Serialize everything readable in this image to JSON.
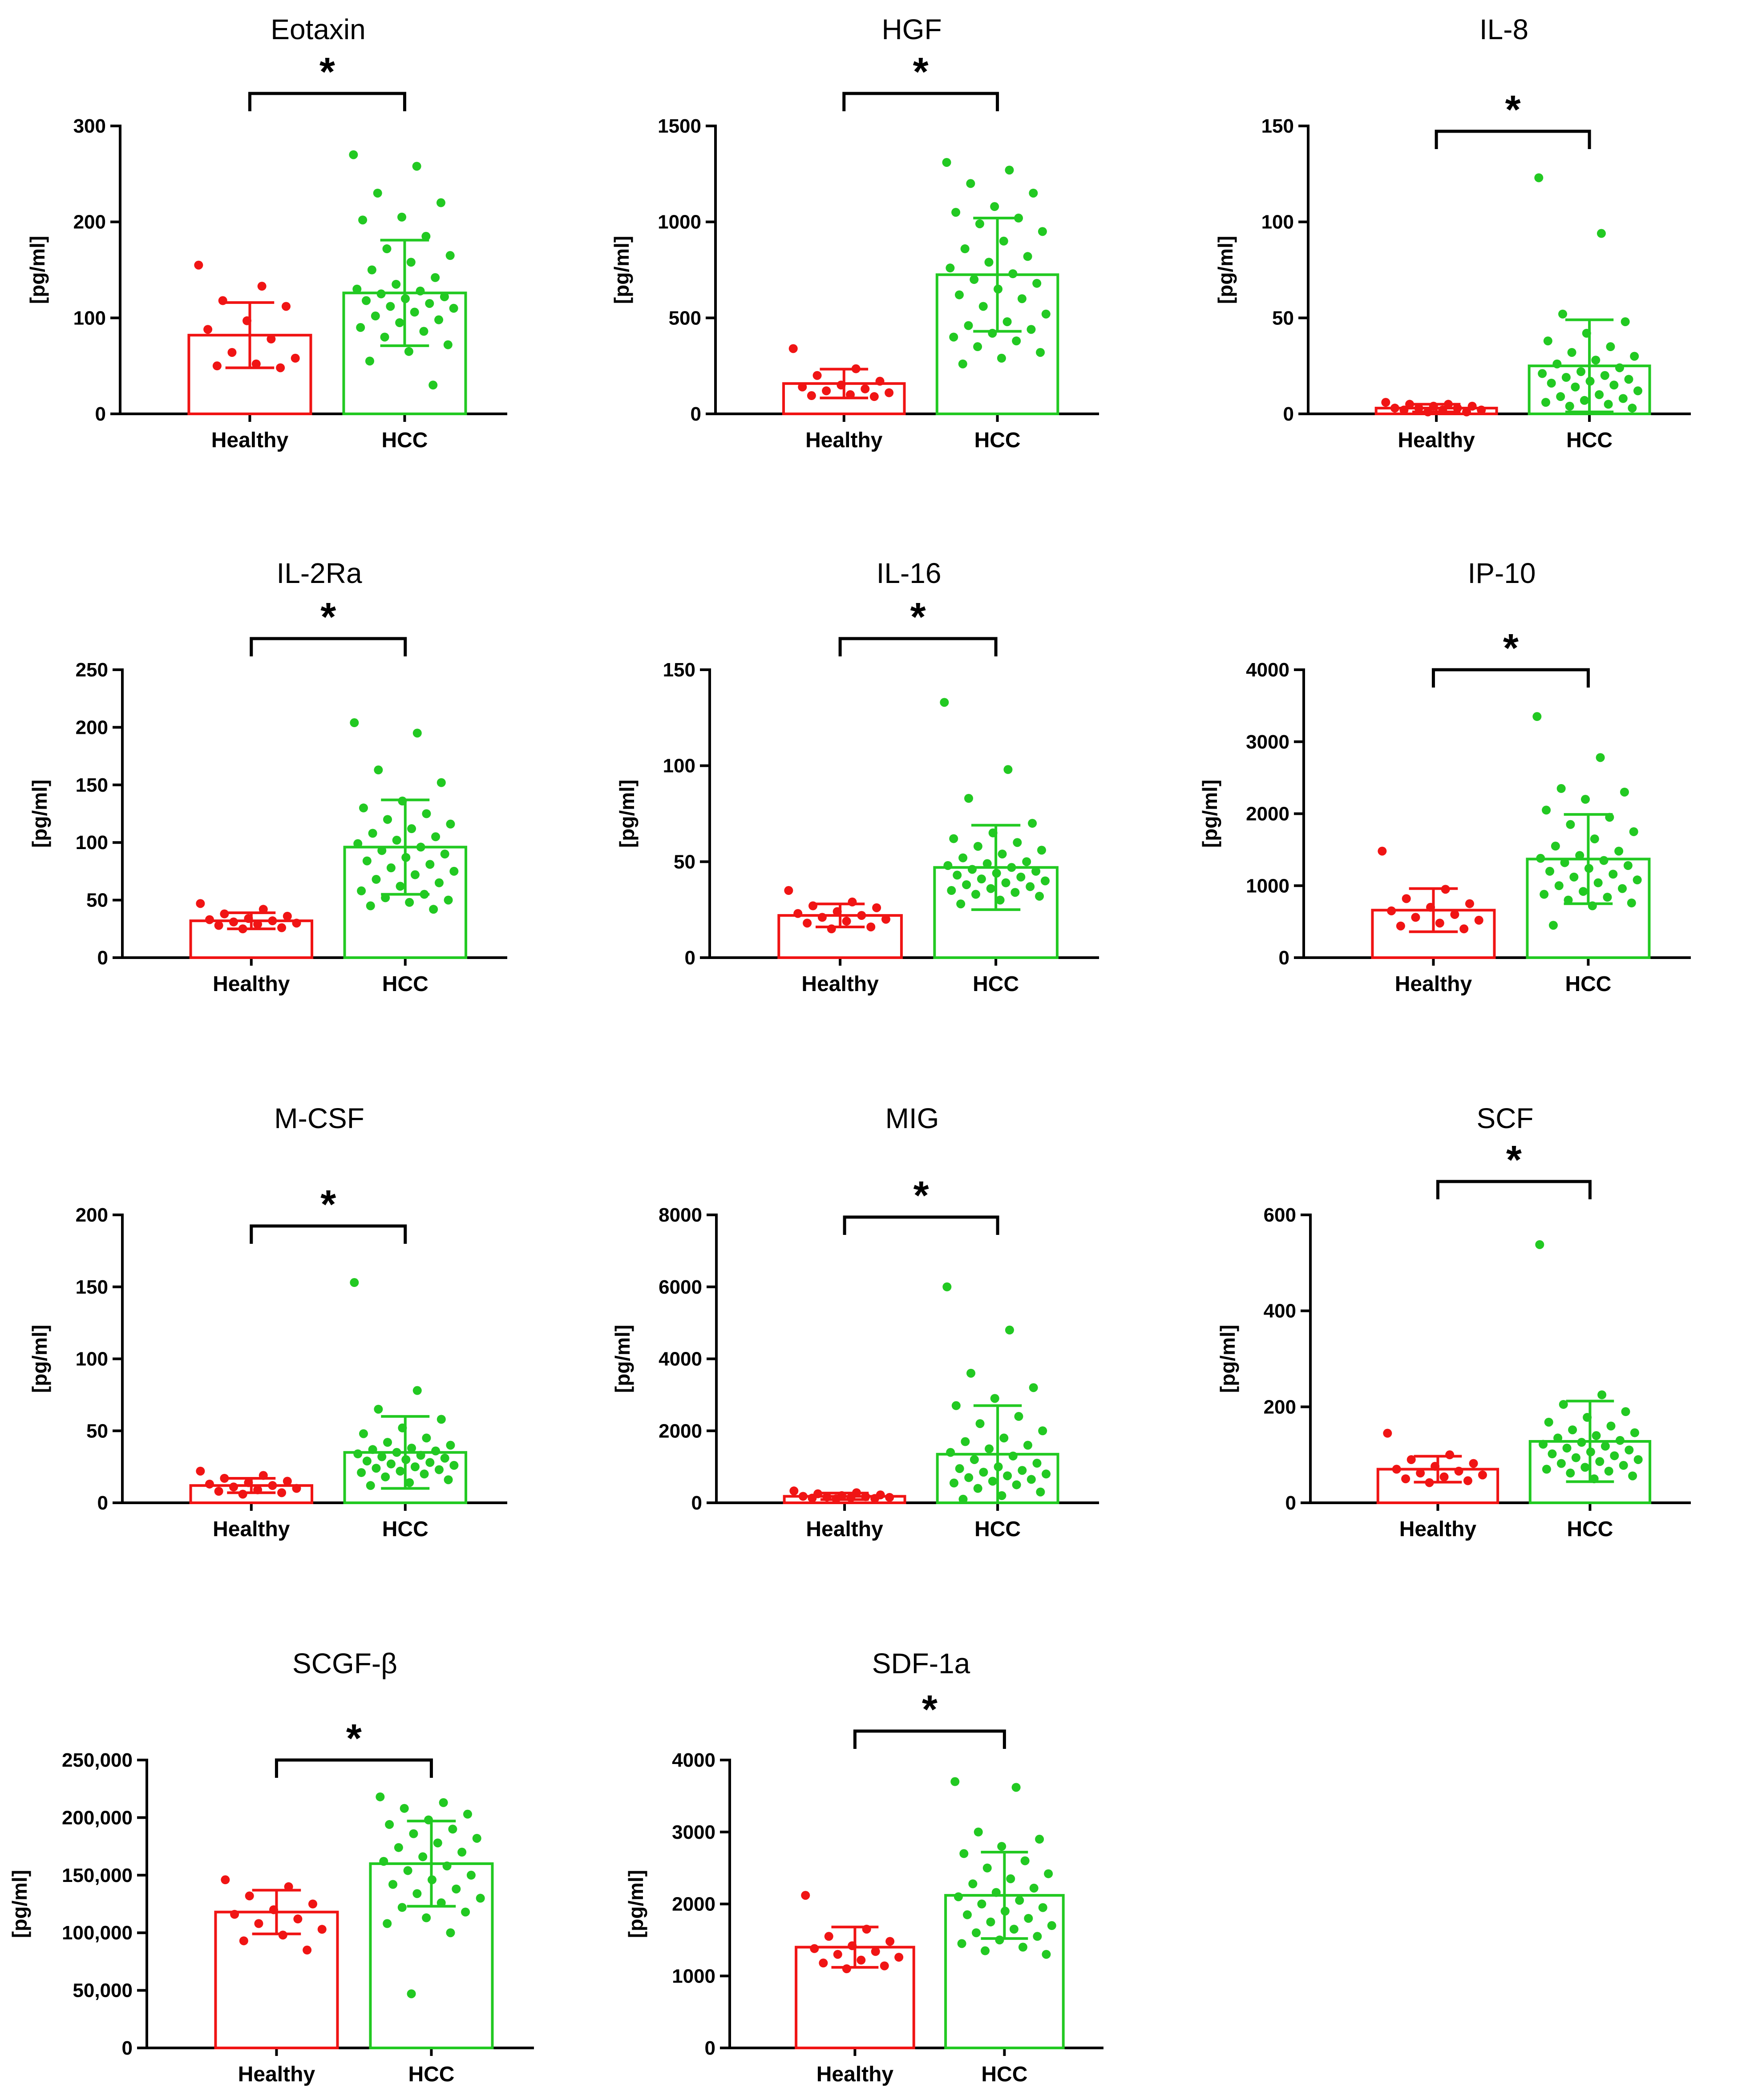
{
  "figure": {
    "colors": {
      "healthy": "#f01414",
      "hcc": "#22c922",
      "axis": "#000000"
    }
  },
  "chart_data": [
    {
      "type": "bar",
      "title": "Eotaxin",
      "ylabel": "[pg/ml]",
      "categories": [
        "Healthy",
        "HCC"
      ],
      "ylim": [
        0,
        300
      ],
      "yticks": [
        0,
        100,
        200,
        300
      ],
      "ytick_labels": [
        "0",
        "100",
        "200",
        "300"
      ],
      "means": [
        82,
        126
      ],
      "sd": [
        34,
        55
      ],
      "significance": "*",
      "points": [
        [
          155,
          133,
          118,
          112,
          97,
          88,
          78,
          64,
          58,
          52,
          50,
          48
        ],
        [
          270,
          258,
          230,
          220,
          205,
          202,
          185,
          172,
          165,
          158,
          150,
          142,
          135,
          130,
          128,
          125,
          122,
          120,
          118,
          115,
          112,
          110,
          106,
          102,
          98,
          95,
          90,
          86,
          80,
          72,
          65,
          55,
          30
        ]
      ]
    },
    {
      "type": "bar",
      "title": "HGF",
      "ylabel": "[pg/ml]",
      "categories": [
        "Healthy",
        "HCC"
      ],
      "ylim": [
        0,
        1500
      ],
      "yticks": [
        0,
        500,
        1000,
        1500
      ],
      "ytick_labels": [
        "0",
        "500",
        "1000",
        "1500"
      ],
      "means": [
        158,
        725
      ],
      "sd": [
        75,
        295
      ],
      "significance": "*",
      "points": [
        [
          340,
          235,
          200,
          170,
          150,
          140,
          130,
          120,
          110,
          100,
          95,
          90
        ],
        [
          1310,
          1270,
          1200,
          1150,
          1080,
          1050,
          1020,
          990,
          950,
          900,
          860,
          820,
          790,
          760,
          730,
          700,
          680,
          650,
          620,
          600,
          560,
          520,
          480,
          460,
          440,
          420,
          400,
          380,
          350,
          320,
          290,
          260
        ]
      ]
    },
    {
      "type": "bar",
      "title": "IL-8",
      "ylabel": "[pg/ml]",
      "categories": [
        "Healthy",
        "HCC"
      ],
      "ylim": [
        0,
        150
      ],
      "yticks": [
        0,
        50,
        100,
        150
      ],
      "ytick_labels": [
        "0",
        "50",
        "100",
        "150"
      ],
      "means": [
        3,
        25
      ],
      "sd": [
        2,
        24
      ],
      "significance": "*",
      "points": [
        [
          6,
          5,
          5,
          4,
          4,
          3,
          3,
          3,
          2,
          2,
          2,
          1,
          1
        ],
        [
          123,
          94,
          52,
          48,
          42,
          38,
          35,
          32,
          30,
          28,
          26,
          24,
          22,
          21,
          20,
          19,
          18,
          17,
          16,
          15,
          14,
          12,
          10,
          9,
          8,
          7,
          6,
          5,
          4,
          3
        ]
      ]
    },
    {
      "type": "bar",
      "title": "IL-2Ra",
      "ylabel": "[pg/ml]",
      "categories": [
        "Healthy",
        "HCC"
      ],
      "ylim": [
        0,
        250
      ],
      "yticks": [
        0,
        50,
        100,
        150,
        200,
        250
      ],
      "ytick_labels": [
        "0",
        "50",
        "100",
        "150",
        "200",
        "250"
      ],
      "means": [
        32,
        96
      ],
      "sd": [
        7,
        41
      ],
      "significance": "*",
      "points": [
        [
          47,
          42,
          38,
          36,
          34,
          33,
          32,
          31,
          30,
          29,
          28,
          26,
          25
        ],
        [
          204,
          195,
          163,
          152,
          136,
          130,
          125,
          120,
          116,
          112,
          108,
          105,
          102,
          99,
          96,
          93,
          90,
          87,
          84,
          81,
          78,
          75,
          72,
          68,
          65,
          62,
          58,
          55,
          52,
          50,
          48,
          45,
          42
        ]
      ]
    },
    {
      "type": "bar",
      "title": "IL-16",
      "ylabel": "[pg/ml]",
      "categories": [
        "Healthy",
        "HCC"
      ],
      "ylim": [
        0,
        150
      ],
      "yticks": [
        0,
        50,
        100,
        150
      ],
      "ytick_labels": [
        "0",
        "50",
        "100",
        "150"
      ],
      "means": [
        22,
        47
      ],
      "sd": [
        6,
        22
      ],
      "significance": "*",
      "points": [
        [
          35,
          29,
          27,
          26,
          24,
          23,
          22,
          21,
          20,
          19,
          18,
          16,
          15
        ],
        [
          133,
          98,
          83,
          70,
          65,
          62,
          60,
          58,
          56,
          54,
          52,
          50,
          49,
          48,
          47,
          46,
          45,
          44,
          43,
          42,
          41,
          40,
          39,
          38,
          37,
          36,
          35,
          34,
          33,
          32,
          30,
          28
        ]
      ]
    },
    {
      "type": "bar",
      "title": "IP-10",
      "ylabel": "[pg/ml]",
      "categories": [
        "Healthy",
        "HCC"
      ],
      "ylim": [
        0,
        4000
      ],
      "yticks": [
        0,
        1000,
        2000,
        3000,
        4000
      ],
      "ytick_labels": [
        "0",
        "1000",
        "2000",
        "3000",
        "4000"
      ],
      "means": [
        660,
        1370
      ],
      "sd": [
        300,
        620
      ],
      "significance": "*",
      "points": [
        [
          1480,
          950,
          820,
          750,
          700,
          650,
          600,
          560,
          520,
          480,
          440,
          400
        ],
        [
          3350,
          2780,
          2350,
          2300,
          2200,
          2050,
          1950,
          1850,
          1750,
          1650,
          1550,
          1480,
          1420,
          1380,
          1350,
          1320,
          1280,
          1240,
          1200,
          1160,
          1120,
          1080,
          1040,
          1000,
          960,
          920,
          880,
          840,
          800,
          760,
          720,
          450
        ]
      ]
    },
    {
      "type": "bar",
      "title": "M-CSF",
      "ylabel": "[pg/ml]",
      "categories": [
        "Healthy",
        "HCC"
      ],
      "ylim": [
        0,
        200
      ],
      "yticks": [
        0,
        50,
        100,
        150,
        200
      ],
      "ytick_labels": [
        "0",
        "50",
        "100",
        "150",
        "200"
      ],
      "means": [
        12,
        35
      ],
      "sd": [
        5,
        25
      ],
      "significance": "*",
      "points": [
        [
          22,
          19,
          17,
          15,
          14,
          13,
          12,
          11,
          10,
          9,
          8,
          7,
          6
        ],
        [
          153,
          78,
          65,
          58,
          52,
          48,
          45,
          42,
          40,
          38,
          37,
          36,
          35,
          34,
          33,
          32,
          31,
          30,
          29,
          28,
          27,
          26,
          25,
          24,
          23,
          22,
          21,
          20,
          18,
          16,
          14,
          12
        ]
      ]
    },
    {
      "type": "bar",
      "title": "MIG",
      "ylabel": "[pg/ml]",
      "categories": [
        "Healthy",
        "HCC"
      ],
      "ylim": [
        0,
        8000
      ],
      "yticks": [
        0,
        2000,
        4000,
        6000,
        8000
      ],
      "ytick_labels": [
        "0",
        "2000",
        "4000",
        "6000",
        "8000"
      ],
      "means": [
        180,
        1350
      ],
      "sd": [
        90,
        1350
      ],
      "significance": "*",
      "points": [
        [
          330,
          280,
          250,
          220,
          200,
          180,
          170,
          160,
          150,
          140,
          130,
          120,
          110
        ],
        [
          6000,
          4800,
          3600,
          3200,
          2900,
          2700,
          2400,
          2200,
          2000,
          1800,
          1700,
          1600,
          1500,
          1400,
          1300,
          1200,
          1100,
          1000,
          950,
          900,
          850,
          800,
          750,
          700,
          650,
          600,
          550,
          500,
          400,
          300,
          200,
          100
        ]
      ]
    },
    {
      "type": "bar",
      "title": "SCF",
      "ylabel": "[pg/ml]",
      "categories": [
        "Healthy",
        "HCC"
      ],
      "ylim": [
        0,
        600
      ],
      "yticks": [
        0,
        200,
        400,
        600
      ],
      "ytick_labels": [
        "0",
        "200",
        "400",
        "600"
      ],
      "means": [
        70,
        128
      ],
      "sd": [
        27,
        84
      ],
      "significance": "*",
      "points": [
        [
          145,
          100,
          90,
          82,
          76,
          70,
          66,
          62,
          58,
          54,
          50,
          46,
          42
        ],
        [
          538,
          225,
          205,
          190,
          178,
          168,
          160,
          152,
          146,
          140,
          135,
          130,
          126,
          122,
          118,
          114,
          110,
          106,
          102,
          98,
          94,
          90,
          86,
          82,
          78,
          74,
          70,
          66,
          62,
          56,
          50
        ]
      ]
    },
    {
      "type": "bar",
      "title": "SCGF-β",
      "ylabel": "[pg/ml]",
      "categories": [
        "Healthy",
        "HCC"
      ],
      "ylim": [
        0,
        250000
      ],
      "yticks": [
        0,
        50000,
        100000,
        150000,
        200000,
        250000
      ],
      "ytick_labels": [
        "0",
        "50,000",
        "100,000",
        "150,000",
        "200,000",
        "250,000"
      ],
      "means": [
        118000,
        160000
      ],
      "sd": [
        19000,
        37000
      ],
      "significance": "*",
      "points": [
        [
          146000,
          140000,
          132000,
          125000,
          120000,
          116000,
          112000,
          108000,
          103000,
          98000,
          93000,
          85000
        ],
        [
          218000,
          213000,
          208000,
          203000,
          198000,
          194000,
          190000,
          186000,
          182000,
          178000,
          174000,
          170000,
          166000,
          162000,
          158000,
          154000,
          150000,
          146000,
          142000,
          138000,
          134000,
          130000,
          126000,
          122000,
          118000,
          113000,
          108000,
          100000,
          47000
        ]
      ]
    },
    {
      "type": "bar",
      "title": "SDF-1a",
      "ylabel": "[pg/ml]",
      "categories": [
        "Healthy",
        "HCC"
      ],
      "ylim": [
        0,
        4000
      ],
      "yticks": [
        0,
        1000,
        2000,
        3000,
        4000
      ],
      "ytick_labels": [
        "0",
        "1000",
        "2000",
        "3000",
        "4000"
      ],
      "means": [
        1400,
        2120
      ],
      "sd": [
        280,
        600
      ],
      "significance": "*",
      "points": [
        [
          2120,
          1650,
          1550,
          1480,
          1420,
          1380,
          1340,
          1300,
          1260,
          1220,
          1180,
          1140,
          1100
        ],
        [
          3700,
          3620,
          3000,
          2900,
          2800,
          2700,
          2600,
          2500,
          2420,
          2350,
          2280,
          2220,
          2160,
          2100,
          2050,
          2000,
          1950,
          1900,
          1850,
          1800,
          1750,
          1700,
          1650,
          1600,
          1550,
          1500,
          1450,
          1400,
          1350,
          1300
        ]
      ]
    }
  ]
}
